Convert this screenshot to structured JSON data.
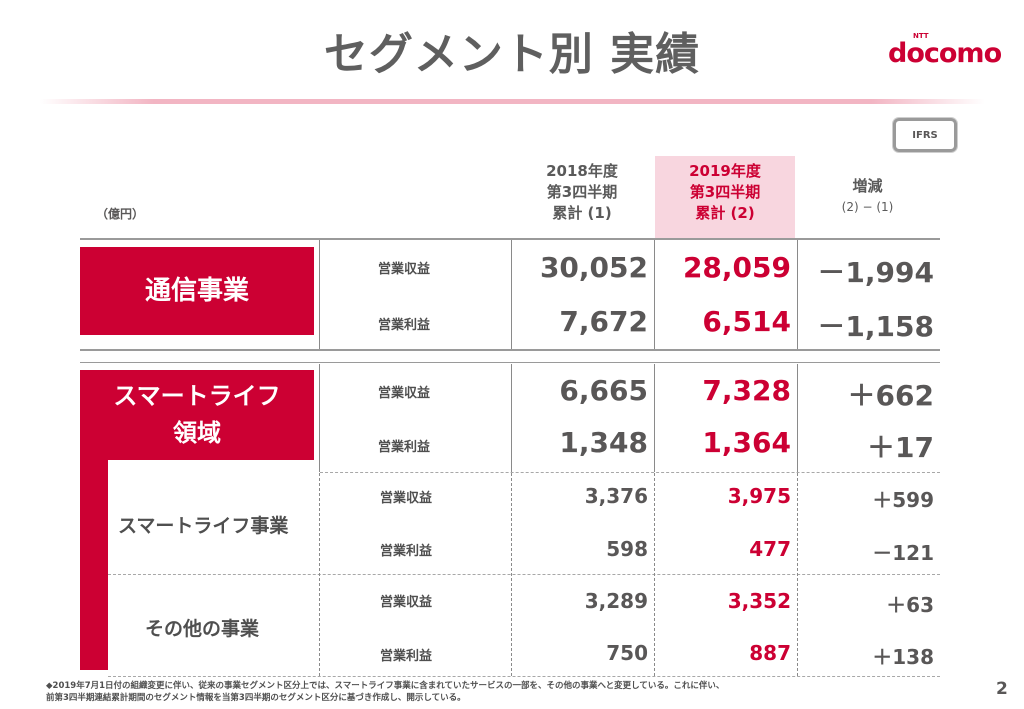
{
  "header": {
    "title": "セグメント別 実績",
    "logo_main": "docomo",
    "logo_ntt": "NTT"
  },
  "ifrs_badge": "IFRS",
  "unit_label": "（億円）",
  "columns": {
    "col1_line1": "2018年度",
    "col1_line2": "第3四半期",
    "col1_line3": "累計 (1)",
    "col2_line1": "2019年度",
    "col2_line2": "第3四半期",
    "col2_line3": "累計 (2)",
    "col3_line1": "増減",
    "col3_line2": "(2) − (1)"
  },
  "segments": {
    "telecom": {
      "name": "通信事業",
      "revenue": {
        "label": "営業収益",
        "v2018": "30,052",
        "v2019": "28,059",
        "diff": "－1,994"
      },
      "profit": {
        "label": "営業利益",
        "v2018": "7,672",
        "v2019": "6,514",
        "diff": "－1,158"
      }
    },
    "smartlife": {
      "name_line1": "スマートライフ",
      "name_line2": "領域",
      "revenue": {
        "label": "営業収益",
        "v2018": "6,665",
        "v2019": "7,328",
        "diff": "＋662"
      },
      "profit": {
        "label": "営業利益",
        "v2018": "1,348",
        "v2019": "1,364",
        "diff": "＋17"
      }
    },
    "smartlife_business": {
      "name": "スマートライフ事業",
      "revenue": {
        "label": "営業収益",
        "v2018": "3,376",
        "v2019": "3,975",
        "diff": "＋599"
      },
      "profit": {
        "label": "営業利益",
        "v2018": "598",
        "v2019": "477",
        "diff": "－121"
      }
    },
    "other_business": {
      "name": "その他の事業",
      "revenue": {
        "label": "営業収益",
        "v2018": "3,289",
        "v2019": "3,352",
        "diff": "＋63"
      },
      "profit": {
        "label": "営業利益",
        "v2018": "750",
        "v2019": "887",
        "diff": "＋138"
      }
    }
  },
  "footnote": {
    "line1": "◆2019年7月1日付の組織変更に伴い、従来の事業セグメント区分上では、スマートライフ事業に含まれていたサービスの一部を、その他の事業へと変更している。これに伴い、",
    "line2": "前第3四半期連結累計期間のセグメント情報を当第3四半期のセグメント区分に基づき作成し、開示している。"
  },
  "page_number": "2",
  "colors": {
    "accent": "#cc0033",
    "highlight": "#f8d6df",
    "text": "#595757"
  }
}
